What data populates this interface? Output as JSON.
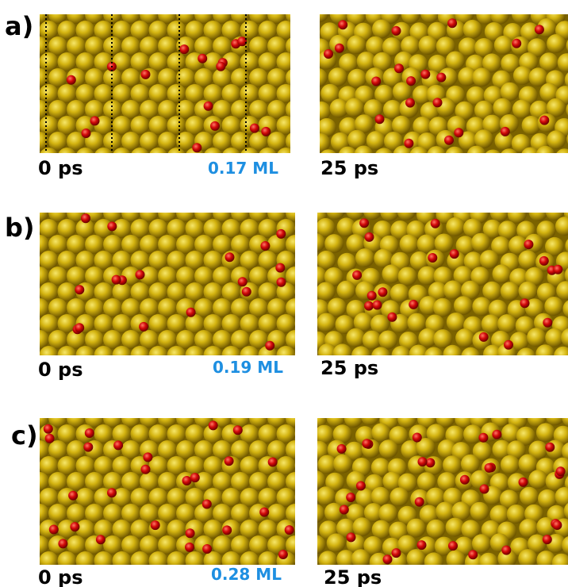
{
  "panels": [
    {
      "label": "a)",
      "left_time": "0 ps",
      "coverage": "0.17 ML",
      "right_time": "25 ps"
    },
    {
      "label": "b)",
      "left_time": "0 ps",
      "coverage": "0.19 ML",
      "right_time": "25 ps"
    },
    {
      "label": "c)",
      "left_time": "0 ps",
      "coverage": "0.28 ML",
      "right_time": "25 ps"
    }
  ]
}
